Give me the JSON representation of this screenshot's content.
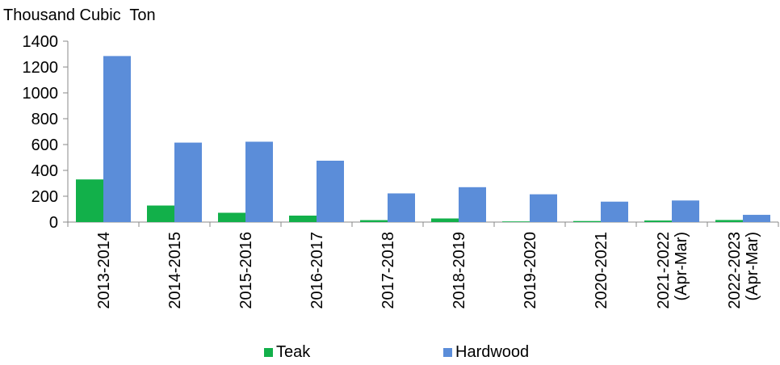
{
  "chart_data": {
    "type": "bar",
    "ylabel": "Thousand Cubic  Ton",
    "ylim": [
      0,
      1400
    ],
    "yticks": [
      0,
      200,
      400,
      600,
      800,
      1000,
      1200,
      1400
    ],
    "grid": false,
    "legend_position": "bottom",
    "categories": [
      [
        "2013-2014"
      ],
      [
        "2014-2015"
      ],
      [
        "2015-2016"
      ],
      [
        "2016-2017"
      ],
      [
        "2017-2018"
      ],
      [
        "2018-2019"
      ],
      [
        "2019-2020"
      ],
      [
        "2020-2021"
      ],
      [
        "2021-2022",
        "(Apr-Mar)"
      ],
      [
        "2022-2023",
        "(Apr-Mar)"
      ]
    ],
    "series": [
      {
        "name": "Teak",
        "color": "#12b04a",
        "values": [
          330,
          128,
          72,
          50,
          15,
          28,
          5,
          8,
          12,
          16
        ]
      },
      {
        "name": "Hardwood",
        "color": "#5b8dd9",
        "values": [
          1285,
          615,
          622,
          475,
          222,
          270,
          215,
          158,
          167,
          56
        ]
      }
    ]
  }
}
